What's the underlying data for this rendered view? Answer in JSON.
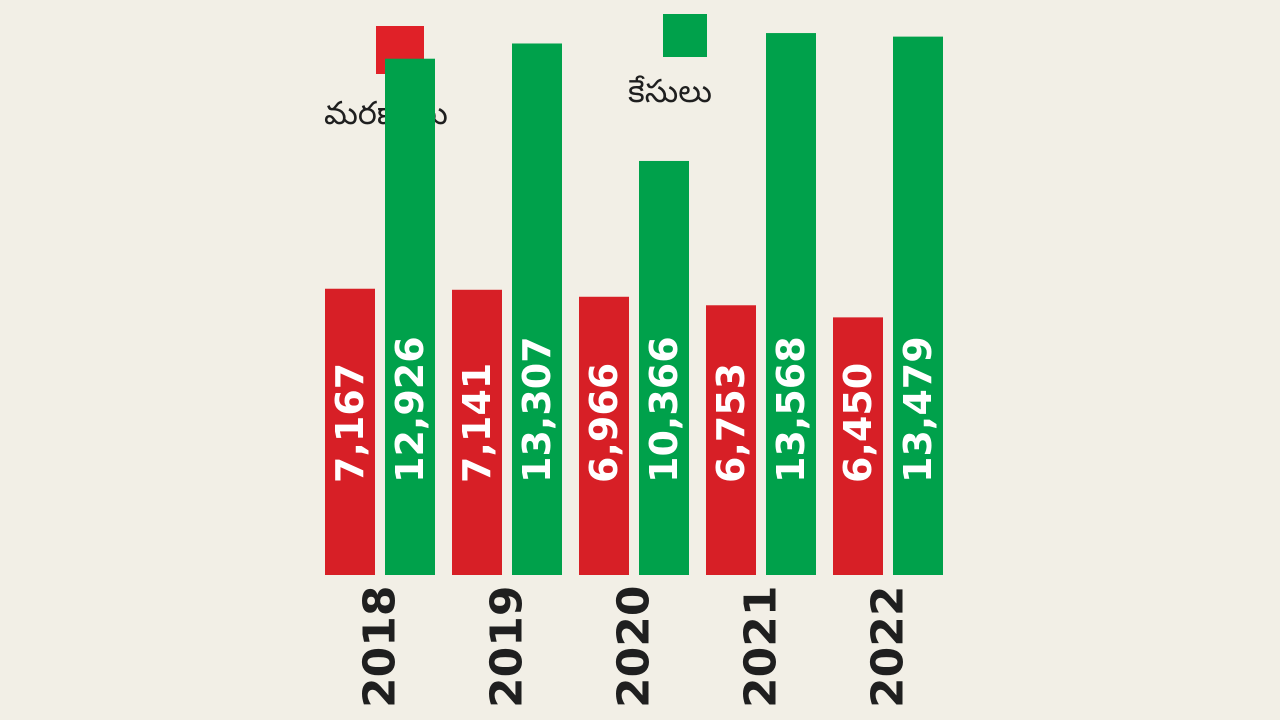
{
  "chart_data": {
    "type": "bar",
    "title": "",
    "xlabel": "",
    "ylabel": "",
    "categories": [
      "2018",
      "2019",
      "2020",
      "2021",
      "2022"
    ],
    "category_labels": [
      "2018",
      "2019",
      "2020",
      "2021",
      "2022"
    ],
    "ylim": [
      0,
      14000
    ],
    "grid": false,
    "legend": [
      {
        "name": "మరణాలు",
        "color": "#e02128"
      },
      {
        "name": "కేసులు",
        "color": "#00a14b"
      }
    ],
    "series": [
      {
        "name": "మరణాలు",
        "color": "#d71f26",
        "values": [
          7167,
          7141,
          6966,
          6753,
          6450
        ],
        "value_labels": [
          "7,167",
          "7,141",
          "6,966",
          "6,753",
          "6,450"
        ]
      },
      {
        "name": "కేసులు",
        "color": "#00a14b",
        "values": [
          12926,
          13307,
          10366,
          13568,
          13479
        ],
        "value_labels": [
          "12,926",
          "13,307",
          "10,366",
          "13,568",
          "13,479"
        ]
      }
    ]
  }
}
